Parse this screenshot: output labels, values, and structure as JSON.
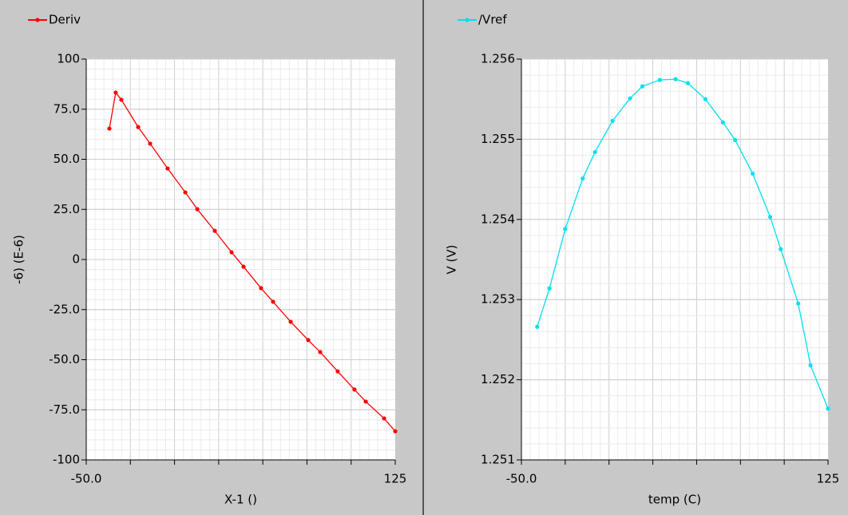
{
  "chart_data": [
    {
      "type": "line",
      "xlabel": "X-1 ()",
      "ylabel": "-6) (E-6)",
      "x": [
        -36.9,
        -33.3,
        -30.1,
        -20.6,
        -13.8,
        -3.9,
        6.1,
        12.9,
        22.8,
        32.3,
        39.1,
        49.0,
        55.8,
        65.8,
        75.7,
        82.5,
        92.4,
        101.9,
        108.3,
        118.7,
        125
      ],
      "series": [
        {
          "name": "Deriv",
          "color": "#ff0000",
          "values": [
            65.3,
            83.3,
            79.7,
            66.1,
            57.8,
            45.4,
            33.5,
            25.1,
            14.3,
            3.6,
            -3.6,
            -14.3,
            -21.1,
            -31.1,
            -40.2,
            -46.2,
            -55.8,
            -64.9,
            -70.9,
            -79.3,
            -85.7
          ]
        }
      ],
      "xlim": [
        -50,
        125
      ],
      "xticks": [
        {
          "value": -50,
          "label": "-50.0"
        },
        125
      ],
      "ylim": [
        -100,
        100
      ],
      "yticks": [
        -100,
        {
          "value": -75,
          "label": "-75.0"
        },
        {
          "value": -50,
          "label": "-50.0"
        },
        {
          "value": -25,
          "label": "-25.0"
        },
        0,
        {
          "value": 25,
          "label": "25.0"
        },
        {
          "value": 50,
          "label": "50.0"
        },
        {
          "value": 75,
          "label": "75.0"
        },
        100
      ],
      "grid": true
    },
    {
      "type": "line",
      "xlabel": "temp (C)",
      "ylabel": "V (V)",
      "x": [
        -41,
        -34,
        -25,
        -15,
        -8,
        2,
        12,
        19,
        29,
        38,
        45,
        55,
        65,
        72,
        82,
        92,
        98,
        108,
        115,
        125
      ],
      "series": [
        {
          "name": "/Vref",
          "color": "#00e0f0",
          "values": [
            1.25266,
            1.25314,
            1.25388,
            1.25451,
            1.25484,
            1.25523,
            1.25551,
            1.25566,
            1.25574,
            1.25575,
            1.2557,
            1.2555,
            1.25521,
            1.25499,
            1.25457,
            1.25403,
            1.25363,
            1.25295,
            1.25218,
            1.25164
          ]
        }
      ],
      "xlim": [
        -50,
        125
      ],
      "xticks": [
        {
          "value": -50,
          "label": "-50.0"
        },
        125
      ],
      "ylim": [
        1.251,
        1.256
      ],
      "yticks": [
        1.251,
        1.252,
        1.253,
        1.254,
        1.255,
        1.256
      ],
      "grid": true
    }
  ]
}
